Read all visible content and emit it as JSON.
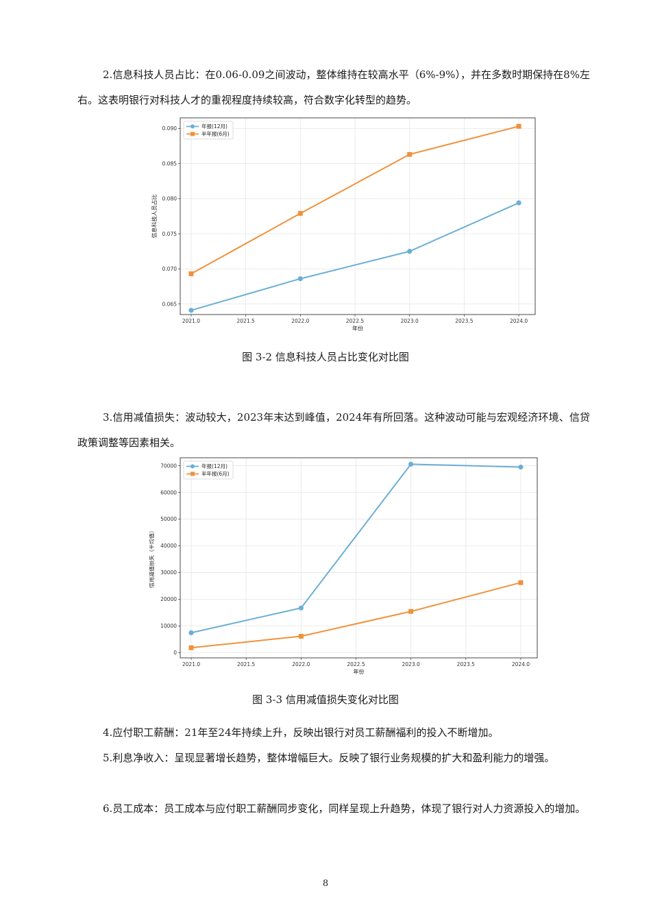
{
  "para2": "2.信息科技人员占比：在0.06-0.09之间波动，整体维持在较高水平（6%-9%），并在多数时期保持在8%左右。这表明银行对科技人才的重视程度持续较高，符合数字化转型的趋势。",
  "caption1": "图 3-2  信息科技人员占比变化对比图",
  "para3": "3.信用减值损失：波动较大，2023年末达到峰值，2024年有所回落。这种波动可能与宏观经济环境、信贷政策调整等因素相关。",
  "caption2": "图 3-3  信用减值损失变化对比图",
  "para4": "4.应付职工薪酬：21年至24年持续上升，反映出银行对员工薪酬福利的投入不断增加。",
  "para5": "5.利息净收入：呈现显著增长趋势，整体增幅巨大。反映了银行业务规模的扩大和盈利能力的增强。",
  "para6": "6.员工成本：员工成本与应付职工薪酬同步变化，同样呈现上升趋势，体现了银行对人力资源投入的增加。",
  "page_number": "8",
  "chart_data": [
    {
      "type": "line",
      "xlabel": "年份",
      "ylabel": "信息科技人员占比",
      "xlim": [
        2020.9,
        2024.15
      ],
      "ylim": [
        0.0635,
        0.0915
      ],
      "xticks": [
        "2021.0",
        "2021.5",
        "2022.0",
        "2022.5",
        "2023.0",
        "2023.5",
        "2024.0"
      ],
      "yticks": [
        "0.065",
        "0.070",
        "0.075",
        "0.080",
        "0.085",
        "0.090"
      ],
      "grid": true,
      "legend": "top-left",
      "series": [
        {
          "name": "年报(12月)",
          "color": "#6aaed6",
          "marker": "circle",
          "x": [
            2021,
            2022,
            2023,
            2024
          ],
          "y": [
            0.0641,
            0.0686,
            0.0725,
            0.0794
          ]
        },
        {
          "name": "半年报(6月)",
          "color": "#f0913a",
          "marker": "square",
          "x": [
            2021,
            2022,
            2023,
            2024
          ],
          "y": [
            0.0693,
            0.0779,
            0.0863,
            0.0903
          ]
        }
      ]
    },
    {
      "type": "line",
      "xlabel": "年份",
      "ylabel": "信用减值损失（平均值）",
      "xlim": [
        2020.9,
        2024.15
      ],
      "ylim": [
        -2000,
        73000
      ],
      "xticks": [
        "2021.0",
        "2021.5",
        "2022.0",
        "2022.5",
        "2023.0",
        "2023.5",
        "2024.0"
      ],
      "yticks": [
        "0",
        "10000",
        "20000",
        "30000",
        "40000",
        "50000",
        "60000",
        "70000"
      ],
      "grid": true,
      "legend": "top-left",
      "series": [
        {
          "name": "年报(12月)",
          "color": "#6aaed6",
          "marker": "circle",
          "x": [
            2021,
            2022,
            2023,
            2024
          ],
          "y": [
            7400,
            16700,
            70600,
            69500
          ]
        },
        {
          "name": "半年报(6月)",
          "color": "#f0913a",
          "marker": "square",
          "x": [
            2021,
            2022,
            2023,
            2024
          ],
          "y": [
            1800,
            6100,
            15400,
            26200
          ]
        }
      ]
    }
  ]
}
